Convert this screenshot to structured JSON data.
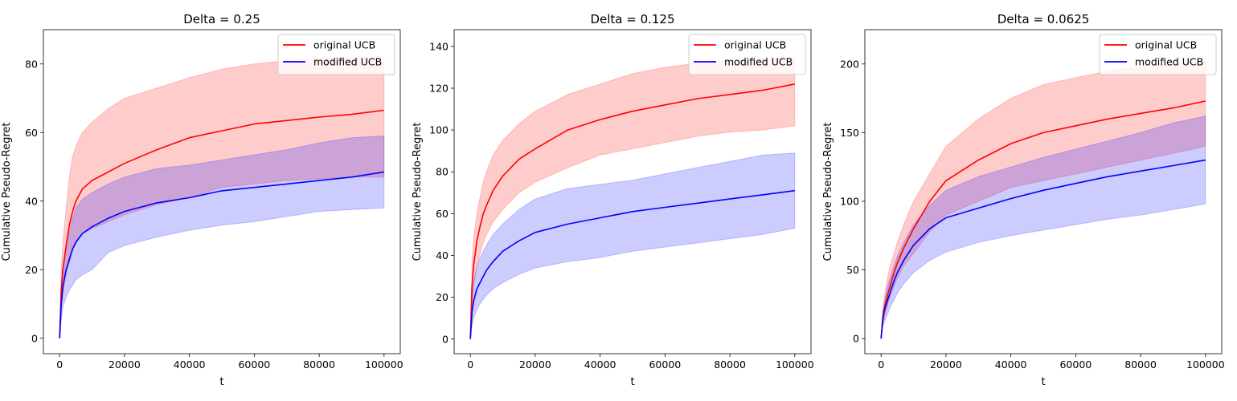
{
  "colors": {
    "original": "#ff0000",
    "modified": "#0000ff",
    "original_band": "#ff0000",
    "modified_band": "#0000ff"
  },
  "chart_data": [
    {
      "type": "line",
      "title": "Delta = 0.25",
      "xlabel": "t",
      "ylabel": "Cumulative Pseudo-Regret",
      "xlim": [
        -5000,
        105000
      ],
      "ylim": [
        -4.5,
        90
      ],
      "xticks": [
        0,
        20000,
        40000,
        60000,
        80000,
        100000
      ],
      "xtick_labels": [
        "0",
        "20000",
        "40000",
        "60000",
        "80000",
        "100000"
      ],
      "yticks": [
        0,
        20,
        40,
        60,
        80
      ],
      "ytick_labels": [
        "0",
        "20",
        "40",
        "60",
        "80"
      ],
      "legend": "top-right",
      "series": [
        {
          "name": "original UCB",
          "x": [
            0,
            500,
            1000,
            2000,
            3000,
            4000,
            5000,
            7000,
            10000,
            15000,
            20000,
            30000,
            40000,
            50000,
            60000,
            70000,
            80000,
            90000,
            100000
          ],
          "y": [
            0,
            14,
            20,
            27,
            33,
            37,
            40,
            43.5,
            46,
            48.5,
            51,
            55,
            58.5,
            60.5,
            62.5,
            63.5,
            64.5,
            65.3,
            66.5
          ],
          "lower": [
            0,
            8,
            13,
            19,
            22,
            26,
            28.5,
            30.5,
            32,
            34,
            36,
            39,
            41,
            44,
            45,
            46,
            46.5,
            47,
            47
          ],
          "upper": [
            0,
            20,
            28,
            38,
            47,
            53,
            56,
            60,
            63,
            67,
            70,
            73,
            76,
            78.5,
            80,
            81,
            81.5,
            82,
            82
          ]
        },
        {
          "name": "modified UCB",
          "x": [
            0,
            500,
            1000,
            2000,
            3000,
            4000,
            5000,
            7000,
            10000,
            15000,
            20000,
            30000,
            40000,
            50000,
            60000,
            70000,
            80000,
            90000,
            100000
          ],
          "y": [
            0,
            10,
            15,
            20,
            23,
            26,
            28,
            30.5,
            32.5,
            35,
            37,
            39.5,
            41,
            43,
            44,
            45,
            46,
            47,
            48.5
          ],
          "lower": [
            0,
            5,
            9,
            12,
            14,
            15.5,
            17,
            18.5,
            20,
            25,
            27,
            29.5,
            31.5,
            33,
            34,
            35.5,
            37,
            37.5,
            38
          ],
          "upper": [
            0,
            15,
            21,
            27,
            31,
            35,
            38,
            40.5,
            42.5,
            45,
            47,
            49.5,
            50.5,
            52,
            53.5,
            55,
            57,
            58.5,
            59
          ]
        }
      ]
    },
    {
      "type": "line",
      "title": "Delta = 0.125",
      "xlabel": "t",
      "ylabel": "Cumulative Pseudo-Regret",
      "xlim": [
        -5000,
        105000
      ],
      "ylim": [
        -7,
        148
      ],
      "xticks": [
        0,
        20000,
        40000,
        60000,
        80000,
        100000
      ],
      "xtick_labels": [
        "0",
        "20000",
        "40000",
        "60000",
        "80000",
        "100000"
      ],
      "yticks": [
        0,
        20,
        40,
        60,
        80,
        100,
        120,
        140
      ],
      "ytick_labels": [
        "0",
        "20",
        "40",
        "60",
        "80",
        "100",
        "120",
        "140"
      ],
      "legend": "top-right",
      "series": [
        {
          "name": "original UCB",
          "x": [
            0,
            500,
            1000,
            2000,
            3000,
            4000,
            5000,
            7000,
            10000,
            15000,
            20000,
            30000,
            40000,
            50000,
            60000,
            70000,
            80000,
            90000,
            100000
          ],
          "y": [
            0,
            25,
            35,
            47,
            54,
            60,
            64,
            71,
            78,
            86,
            91,
            100,
            105,
            109,
            112,
            115,
            117,
            119,
            122
          ],
          "lower": [
            0,
            15,
            25,
            35,
            41,
            46,
            50,
            56,
            62,
            70,
            75,
            82,
            88,
            91,
            94,
            97,
            99,
            100,
            102
          ],
          "upper": [
            0,
            35,
            48,
            60,
            68,
            75,
            80,
            88,
            95,
            103,
            109,
            117,
            122,
            127,
            130,
            132,
            133,
            134,
            135
          ]
        },
        {
          "name": "modified UCB",
          "x": [
            0,
            500,
            1000,
            2000,
            3000,
            4000,
            5000,
            7000,
            10000,
            15000,
            20000,
            30000,
            40000,
            50000,
            60000,
            70000,
            80000,
            90000,
            100000
          ],
          "y": [
            0,
            13,
            18,
            24,
            27,
            30,
            33,
            37,
            42,
            47,
            51,
            55,
            58,
            61,
            63,
            65,
            67,
            69,
            71
          ],
          "lower": [
            0,
            6,
            10,
            14,
            17,
            19,
            21,
            24,
            27,
            31,
            34,
            37,
            39,
            42,
            44,
            46,
            48,
            50,
            53
          ],
          "upper": [
            0,
            20,
            27,
            34,
            39,
            42,
            45,
            50,
            55,
            62,
            67,
            72,
            74,
            76,
            79,
            82,
            85,
            88,
            89
          ]
        }
      ]
    },
    {
      "type": "line",
      "title": "Delta = 0.0625",
      "xlabel": "t",
      "ylabel": "Cumulative Pseudo-Regret",
      "xlim": [
        -5000,
        105000
      ],
      "ylim": [
        -11,
        225
      ],
      "xticks": [
        0,
        20000,
        40000,
        60000,
        80000,
        100000
      ],
      "xtick_labels": [
        "0",
        "20000",
        "40000",
        "60000",
        "80000",
        "100000"
      ],
      "yticks": [
        0,
        50,
        100,
        150,
        200
      ],
      "ytick_labels": [
        "0",
        "50",
        "100",
        "150",
        "200"
      ],
      "legend": "top-right",
      "series": [
        {
          "name": "original UCB",
          "x": [
            0,
            500,
            1000,
            2000,
            3000,
            4000,
            5000,
            7000,
            10000,
            15000,
            20000,
            30000,
            40000,
            50000,
            60000,
            70000,
            80000,
            90000,
            100000
          ],
          "y": [
            0,
            15,
            22,
            32,
            40,
            48,
            55,
            66,
            80,
            100,
            115,
            130,
            142,
            150,
            155,
            160,
            164,
            168,
            173
          ],
          "lower": [
            0,
            10,
            15,
            25,
            32,
            38,
            44,
            53,
            62,
            78,
            90,
            100,
            110,
            115,
            120,
            125,
            130,
            135,
            140
          ],
          "upper": [
            0,
            20,
            30,
            45,
            55,
            62,
            70,
            83,
            100,
            120,
            140,
            160,
            175,
            185,
            190,
            195,
            198,
            200,
            202
          ]
        },
        {
          "name": "modified UCB",
          "x": [
            0,
            500,
            1000,
            2000,
            3000,
            4000,
            5000,
            7000,
            10000,
            15000,
            20000,
            30000,
            40000,
            50000,
            60000,
            70000,
            80000,
            90000,
            100000
          ],
          "y": [
            0,
            13,
            20,
            28,
            35,
            42,
            48,
            57,
            68,
            80,
            88,
            95,
            102,
            108,
            113,
            118,
            122,
            126,
            130
          ],
          "lower": [
            0,
            8,
            12,
            18,
            24,
            28,
            33,
            40,
            48,
            57,
            63,
            70,
            75,
            79,
            83,
            87,
            90,
            94,
            98
          ],
          "upper": [
            0,
            18,
            26,
            38,
            46,
            53,
            60,
            70,
            83,
            97,
            108,
            118,
            125,
            132,
            138,
            144,
            150,
            157,
            162
          ]
        }
      ]
    }
  ]
}
